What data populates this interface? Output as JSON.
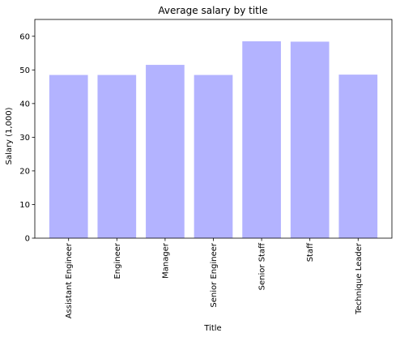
{
  "chart_data": {
    "type": "bar",
    "title": "Average salary by title",
    "xlabel": "Title",
    "ylabel": "Salary (1,000)",
    "categories": [
      "Assistant Engineer",
      "Engineer",
      "Manager",
      "Senior Engineer",
      "Senior Staff",
      "Staff",
      "Technique Leader"
    ],
    "values": [
      48.5,
      48.5,
      51.5,
      48.5,
      58.5,
      58.4,
      48.6
    ],
    "ylim": [
      0,
      65
    ],
    "yticks": [
      0,
      10,
      20,
      30,
      40,
      50,
      60
    ],
    "grid": false,
    "bar_color": "#b3b3ff"
  }
}
